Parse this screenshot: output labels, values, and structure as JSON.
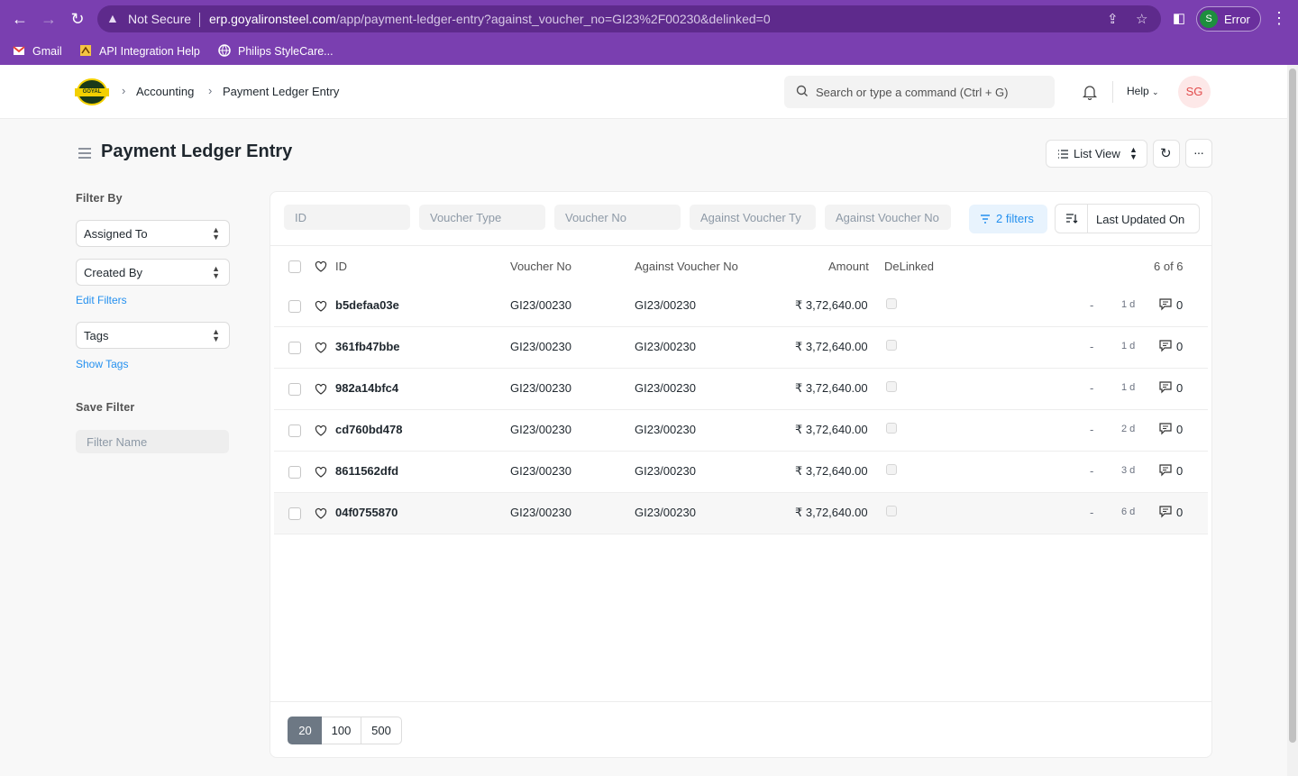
{
  "browser": {
    "not_secure": "Not Secure",
    "url_domain": "erp.goyalironsteel.com",
    "url_path": "/app/payment-ledger-entry?against_voucher_no=GI23%2F00230&delinked=0",
    "profile_initial": "S",
    "profile_label": "Error",
    "bookmarks": [
      "Gmail",
      "API Integration Help",
      "Philips StyleCare..."
    ]
  },
  "header": {
    "logo_text": "GOYAL",
    "breadcrumbs": [
      "Accounting",
      "Payment Ledger Entry"
    ],
    "search_placeholder": "Search or type a command (Ctrl + G)",
    "help_label": "Help",
    "user_initials": "SG"
  },
  "page": {
    "title": "Payment Ledger Entry",
    "list_view_label": "List View"
  },
  "sidebar": {
    "filter_by": "Filter By",
    "assigned_to": "Assigned To",
    "created_by": "Created By",
    "edit_filters": "Edit Filters",
    "tags": "Tags",
    "show_tags": "Show Tags",
    "save_filter": "Save Filter",
    "filter_name_placeholder": "Filter Name"
  },
  "filters": {
    "inputs": [
      "ID",
      "Voucher Type",
      "Voucher No",
      "Against Voucher Ty",
      "Against Voucher No"
    ],
    "filter_button": "2 filters",
    "sort_label": "Last Updated On"
  },
  "table": {
    "columns": [
      "ID",
      "Voucher No",
      "Against Voucher No",
      "Amount",
      "DeLinked"
    ],
    "count": "6 of 6",
    "rows": [
      {
        "id": "b5defaa03e",
        "voucher_no": "GI23/00230",
        "against_voucher_no": "GI23/00230",
        "amount": "₹ 3,72,640.00",
        "dash": "-",
        "age": "1 d",
        "comments": "0"
      },
      {
        "id": "361fb47bbe",
        "voucher_no": "GI23/00230",
        "against_voucher_no": "GI23/00230",
        "amount": "₹ 3,72,640.00",
        "dash": "-",
        "age": "1 d",
        "comments": "0"
      },
      {
        "id": "982a14bfc4",
        "voucher_no": "GI23/00230",
        "against_voucher_no": "GI23/00230",
        "amount": "₹ 3,72,640.00",
        "dash": "-",
        "age": "1 d",
        "comments": "0"
      },
      {
        "id": "cd760bd478",
        "voucher_no": "GI23/00230",
        "against_voucher_no": "GI23/00230",
        "amount": "₹ 3,72,640.00",
        "dash": "-",
        "age": "2 d",
        "comments": "0"
      },
      {
        "id": "8611562dfd",
        "voucher_no": "GI23/00230",
        "against_voucher_no": "GI23/00230",
        "amount": "₹ 3,72,640.00",
        "dash": "-",
        "age": "3 d",
        "comments": "0"
      },
      {
        "id": "04f0755870",
        "voucher_no": "GI23/00230",
        "against_voucher_no": "GI23/00230",
        "amount": "₹ 3,72,640.00",
        "dash": "-",
        "age": "6 d",
        "comments": "0"
      }
    ]
  },
  "pagination": {
    "sizes": [
      "20",
      "100",
      "500"
    ],
    "active": "20"
  },
  "colors": {
    "chrome": "#7a3fb0",
    "accent": "#2490ef",
    "page_bg": "#f8f8f8"
  }
}
